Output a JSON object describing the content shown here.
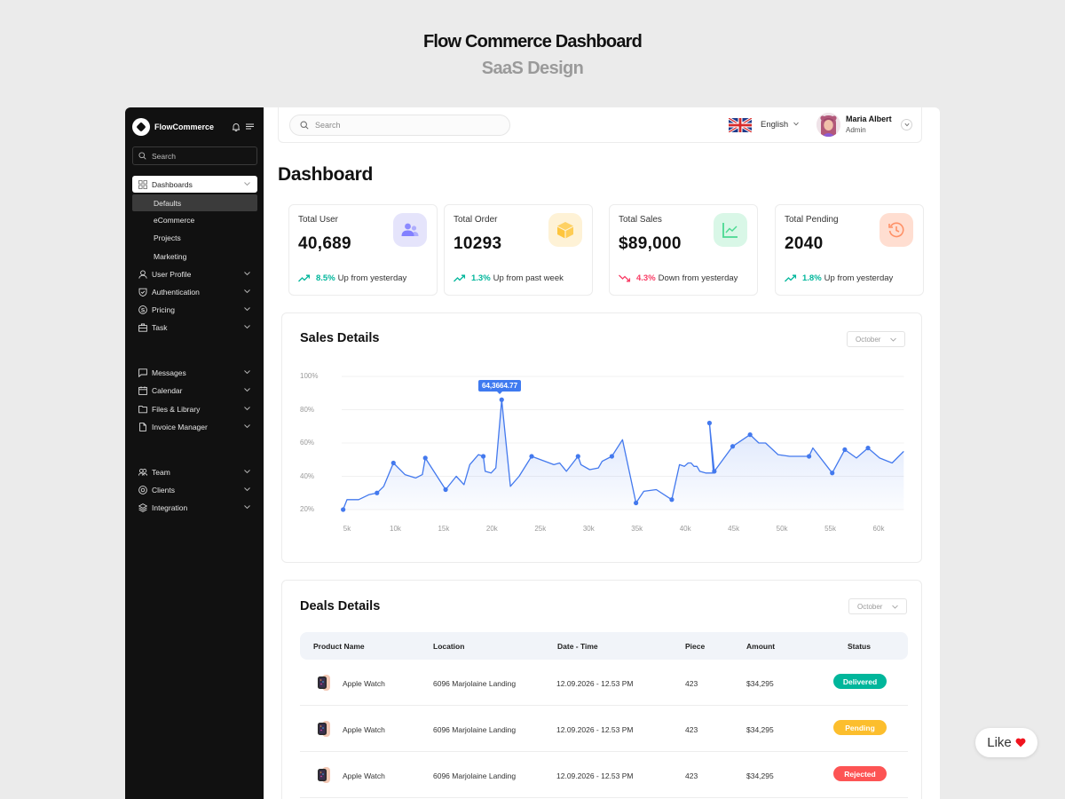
{
  "hero": {
    "title": "Flow Commerce Dashboard",
    "subtitle": "SaaS Design"
  },
  "brand": {
    "name": "FlowCommerce"
  },
  "sidebar": {
    "search_placeholder": "Search",
    "items": [
      {
        "label": "Dashboards",
        "icon": "grid-icon",
        "active": true
      },
      {
        "label": "User Profile",
        "icon": "user-icon"
      },
      {
        "label": "Authentication",
        "icon": "shield-icon"
      },
      {
        "label": "Pricing",
        "icon": "dollar-icon"
      },
      {
        "label": "Task",
        "icon": "briefcase-icon"
      },
      {
        "label": "Messages",
        "icon": "message-icon"
      },
      {
        "label": "Calendar",
        "icon": "calendar-icon"
      },
      {
        "label": "Files & Library",
        "icon": "folder-icon"
      },
      {
        "label": "Invoice Manager",
        "icon": "file-icon"
      },
      {
        "label": "Team",
        "icon": "team-icon"
      },
      {
        "label": "Clients",
        "icon": "at-icon"
      },
      {
        "label": "Integration",
        "icon": "layers-icon"
      }
    ],
    "sub_items": [
      {
        "label": "Defaults",
        "active": true
      },
      {
        "label": "eCommerce"
      },
      {
        "label": "Projects"
      },
      {
        "label": "Marketing"
      }
    ]
  },
  "topbar": {
    "search_placeholder": "Search",
    "language": "English",
    "user": {
      "name": "Maria Albert",
      "role": "Admin"
    }
  },
  "page": {
    "title": "Dashboard"
  },
  "stats": [
    {
      "label": "Total User",
      "value": "40,689",
      "pct": "8.5%",
      "trend": "up",
      "note": "Up from yesterday",
      "icon": "users-icon",
      "icon_bg": "#e5e4fb",
      "icon_color": "#8280ff"
    },
    {
      "label": "Total Order",
      "value": "10293",
      "pct": "1.3%",
      "trend": "up",
      "note": "Up from past week",
      "icon": "box-icon",
      "icon_bg": "#fef2d6",
      "icon_color": "#fec53d"
    },
    {
      "label": "Total Sales",
      "value": "$89,000",
      "pct": "4.3%",
      "trend": "down",
      "note": "Down from yesterday",
      "icon": "chart-line-icon",
      "icon_bg": "#d9f7e7",
      "icon_color": "#4ad991"
    },
    {
      "label": "Total Pending",
      "value": "2040",
      "pct": "1.8%",
      "trend": "up",
      "note": "Up from yesterday",
      "icon": "history-icon",
      "icon_bg": "#ffded1",
      "icon_color": "#ff9066"
    }
  ],
  "colors": {
    "up": "#00b69b",
    "down": "#f93c65",
    "line": "#4379ee",
    "delivered": "#00b69b",
    "pending": "#fcbe2d",
    "rejected": "#fd5454"
  },
  "sales": {
    "title": "Sales Details",
    "month": "October",
    "tooltip": "64,3664.77"
  },
  "chart_data": {
    "type": "area",
    "title": "Sales Details",
    "xlabel": "",
    "ylabel": "",
    "x_ticks": [
      "5k",
      "10k",
      "15k",
      "20k",
      "25k",
      "30k",
      "35k",
      "40k",
      "45k",
      "50k",
      "55k",
      "60k"
    ],
    "y_ticks": [
      "100%",
      "80%",
      "60%",
      "40%",
      "20%"
    ],
    "ylim": [
      20,
      100
    ],
    "xlim": [
      4.6,
      62.6
    ],
    "grid": true,
    "annotation": {
      "x": 21.0,
      "y": 86,
      "label": "64,3664.77"
    },
    "x": [
      4.6,
      5.0,
      6.2,
      7.3,
      8.1,
      8.8,
      9.8,
      11.0,
      12.1,
      12.8,
      13.1,
      15.2,
      16.3,
      17.1,
      17.7,
      18.6,
      19.1,
      19.3,
      19.9,
      20.4,
      21.0,
      21.9,
      22.8,
      24.1,
      26.4,
      27.0,
      27.7,
      28.9,
      29.2,
      30.1,
      31.0,
      31.4,
      32.4,
      33.5,
      34.9,
      35.7,
      37.0,
      38.6,
      39.4,
      39.9,
      40.3,
      40.6,
      40.9,
      41.2,
      41.5,
      42.1,
      42.9,
      42.5,
      43.0,
      44.9,
      46.7,
      47.6,
      48.3,
      49.6,
      50.8,
      52.8,
      53.2,
      55.2,
      56.5,
      57.7,
      58.9,
      60.1,
      61.4,
      62.6
    ],
    "values": [
      20,
      26,
      26,
      29,
      30,
      34,
      48,
      41,
      39,
      41,
      51,
      32,
      40,
      35,
      47,
      53,
      52,
      43,
      42,
      45,
      86,
      34,
      40,
      52,
      47,
      48,
      43,
      52,
      47,
      44,
      45,
      49,
      52,
      62,
      24,
      31,
      32,
      26,
      47,
      46,
      48,
      48,
      46,
      46,
      43,
      42,
      42,
      72,
      43,
      58,
      65,
      60,
      60,
      53,
      52,
      52,
      57,
      42,
      56,
      51,
      57,
      51,
      48,
      55
    ],
    "markers_x": [
      4.6,
      8.1,
      9.8,
      13.1,
      15.2,
      19.1,
      21.0,
      24.1,
      28.9,
      32.4,
      34.9,
      38.6,
      42.5,
      43.0,
      44.9,
      46.7,
      52.8,
      55.2,
      56.5,
      58.9
    ],
    "series": [
      {
        "name": "Sales",
        "color": "#4379ee"
      }
    ]
  },
  "deals": {
    "title": "Deals Details",
    "month": "October",
    "columns": [
      "Product Name",
      "Location",
      "Date - Time",
      "Piece",
      "Amount",
      "Status"
    ],
    "rows": [
      {
        "product": "Apple Watch",
        "location": "6096 Marjolaine Landing",
        "datetime": "12.09.2026 - 12.53 PM",
        "piece": "423",
        "amount": "$34,295",
        "status": "Delivered"
      },
      {
        "product": "Apple Watch",
        "location": "6096 Marjolaine Landing",
        "datetime": "12.09.2026 - 12.53 PM",
        "piece": "423",
        "amount": "$34,295",
        "status": "Pending"
      },
      {
        "product": "Apple Watch",
        "location": "6096 Marjolaine Landing",
        "datetime": "12.09.2026 - 12.53 PM",
        "piece": "423",
        "amount": "$34,295",
        "status": "Rejected"
      }
    ]
  },
  "like": {
    "label": "Like"
  }
}
